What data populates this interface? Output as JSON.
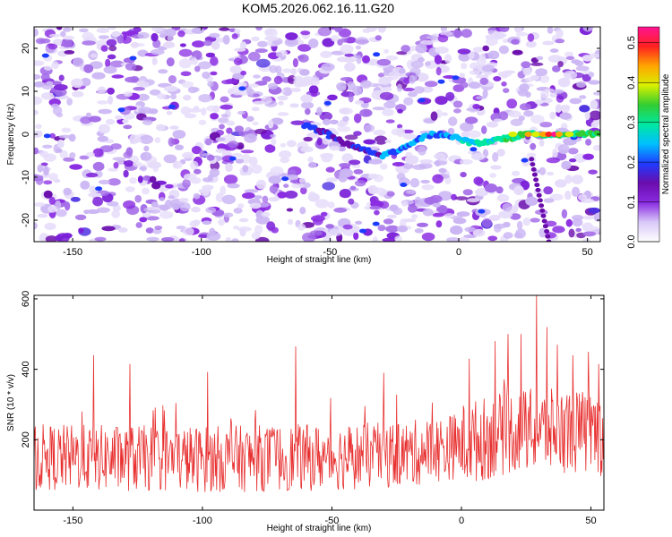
{
  "title": "KOM5.2026.062.16.11.G20",
  "chart_data": [
    {
      "type": "heatmap",
      "xlabel": "Height of straight line (km)",
      "ylabel": "Frequency (Hz)",
      "xlim": [
        -165,
        55
      ],
      "ylim": [
        -25,
        25
      ],
      "xticks": [
        -150,
        -100,
        -50,
        0,
        50
      ],
      "yticks": [
        -20,
        -10,
        0,
        10,
        20
      ],
      "colorbar": {
        "label": "Normalized spectral amplitude",
        "range": [
          0,
          0.54
        ],
        "ticks": [
          "0.0",
          "0.1",
          "0.2",
          "0.3",
          "0.4",
          "0.5"
        ],
        "colormap": [
          "#ffffff",
          "#d8c8f8",
          "#8a2be2",
          "#6a0dad",
          "#1e3cff",
          "#00bfff",
          "#00e8a0",
          "#32cd32",
          "#d8f000",
          "#ffa500",
          "#ff2020",
          "#ff1493"
        ]
      },
      "signal_track": [
        {
          "x": -60,
          "y": 2
        },
        {
          "x": -50,
          "y": 0
        },
        {
          "x": -45,
          "y": -2
        },
        {
          "x": -40,
          "y": -3
        },
        {
          "x": -35,
          "y": -4
        },
        {
          "x": -30,
          "y": -5
        },
        {
          "x": -25,
          "y": -4
        },
        {
          "x": -20,
          "y": -3
        },
        {
          "x": -15,
          "y": -1
        },
        {
          "x": -10,
          "y": 0
        },
        {
          "x": -5,
          "y": 0
        },
        {
          "x": 0,
          "y": -1
        },
        {
          "x": 5,
          "y": -2
        },
        {
          "x": 10,
          "y": -2
        },
        {
          "x": 15,
          "y": -1
        },
        {
          "x": 20,
          "y": -1
        },
        {
          "x": 25,
          "y": 0
        },
        {
          "x": 30,
          "y": 0
        },
        {
          "x": 35,
          "y": 0
        },
        {
          "x": 40,
          "y": 0
        },
        {
          "x": 45,
          "y": 0
        },
        {
          "x": 50,
          "y": 0
        }
      ],
      "peak": {
        "x": 35,
        "y": 0,
        "value": 0.54
      }
    },
    {
      "type": "line",
      "xlabel": "Height of straight line (km)",
      "ylabel": "SNR (10 * v/v)",
      "xlim": [
        -165,
        55
      ],
      "ylim": [
        0,
        610
      ],
      "xticks": [
        -150,
        -100,
        -50,
        0,
        50
      ],
      "yticks": [
        200,
        400,
        600
      ],
      "color": "#e83030",
      "trend": [
        {
          "x": -165,
          "y": 150
        },
        {
          "x": -100,
          "y": 145
        },
        {
          "x": -50,
          "y": 150
        },
        {
          "x": -20,
          "y": 160
        },
        {
          "x": 0,
          "y": 185
        },
        {
          "x": 20,
          "y": 225
        },
        {
          "x": 40,
          "y": 225
        },
        {
          "x": 55,
          "y": 215
        }
      ],
      "noise_range": [
        50,
        300
      ],
      "spikes": [
        {
          "x": -142,
          "y": 440
        },
        {
          "x": -128,
          "y": 415
        },
        {
          "x": -98,
          "y": 392
        },
        {
          "x": -64,
          "y": 465
        },
        {
          "x": -30,
          "y": 390
        },
        {
          "x": 3,
          "y": 430
        },
        {
          "x": 13,
          "y": 480
        },
        {
          "x": 18,
          "y": 500
        },
        {
          "x": 23,
          "y": 500
        },
        {
          "x": 29,
          "y": 610
        },
        {
          "x": 33,
          "y": 520
        },
        {
          "x": 37,
          "y": 470
        },
        {
          "x": 43,
          "y": 440
        },
        {
          "x": 49,
          "y": 450
        },
        {
          "x": 53,
          "y": 415
        }
      ]
    }
  ]
}
